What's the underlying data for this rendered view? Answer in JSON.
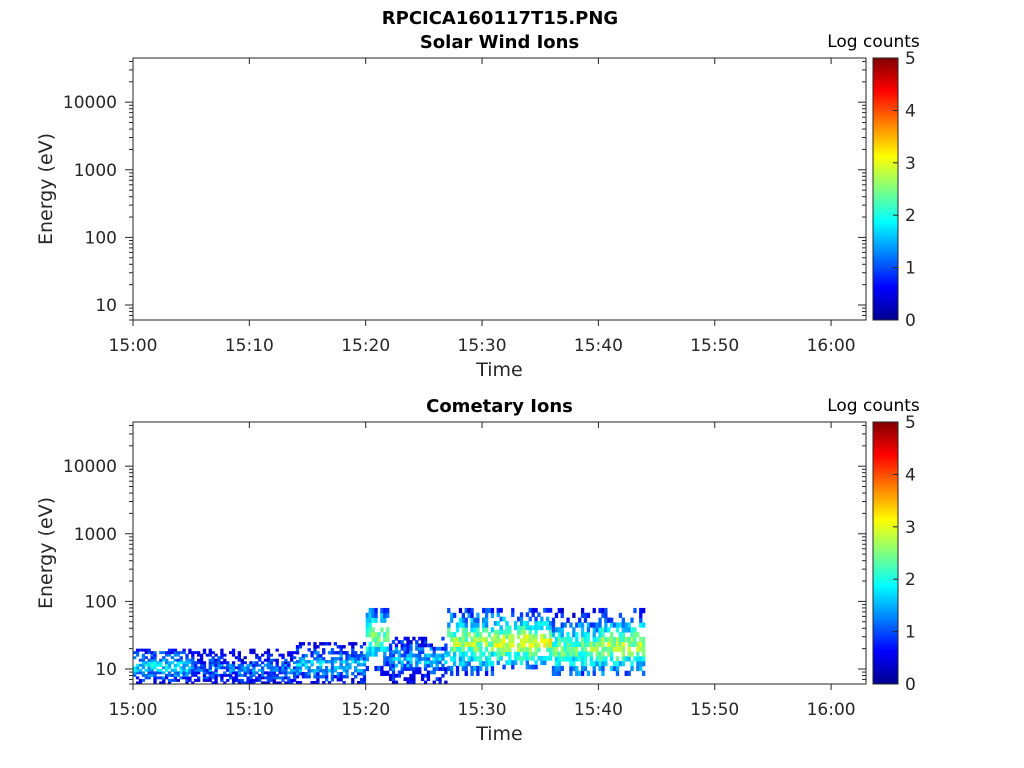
{
  "figure": {
    "title": "RPCICA160117T15.PNG"
  },
  "colormap": "jet",
  "chart_data": [
    {
      "type": "heatmap",
      "title": "Solar Wind Ions",
      "xlabel": "Time",
      "ylabel": "Energy (eV)",
      "x_ticks": [
        "15:00",
        "15:10",
        "15:20",
        "15:30",
        "15:40",
        "15:50",
        "16:00"
      ],
      "xlim": [
        "15:00",
        "16:03"
      ],
      "y_scale": "log",
      "y_ticks": [
        "10",
        "100",
        "1000",
        "10000"
      ],
      "ylim": [
        6,
        45000
      ],
      "colorbar": {
        "label": "Log counts",
        "range": [
          0,
          5
        ],
        "ticks": [
          "0",
          "1",
          "2",
          "3",
          "4",
          "5"
        ]
      },
      "data_segments": []
    },
    {
      "type": "heatmap",
      "title": "Cometary Ions",
      "xlabel": "Time",
      "ylabel": "Energy (eV)",
      "x_ticks": [
        "15:00",
        "15:10",
        "15:20",
        "15:30",
        "15:40",
        "15:50",
        "16:00"
      ],
      "xlim": [
        "15:00",
        "16:03"
      ],
      "y_scale": "log",
      "y_ticks": [
        "10",
        "100",
        "1000",
        "10000"
      ],
      "ylim": [
        6,
        45000
      ],
      "colorbar": {
        "label": "Log counts",
        "range": [
          0,
          5
        ],
        "ticks": [
          "0",
          "1",
          "2",
          "3",
          "4",
          "5"
        ]
      },
      "data_segments": [
        {
          "t_start": "15:00",
          "t_end": "15:05",
          "e_low": 6,
          "e_high": 20,
          "e_peak": 11,
          "peak_log_counts": 1.8
        },
        {
          "t_start": "15:05",
          "t_end": "15:14",
          "e_low": 6,
          "e_high": 20,
          "e_peak": 10,
          "peak_log_counts": 1.2
        },
        {
          "t_start": "15:14",
          "t_end": "15:20",
          "e_low": 6,
          "e_high": 25,
          "e_peak": 12,
          "peak_log_counts": 1.6
        },
        {
          "t_start": "15:20",
          "t_end": "15:22",
          "e_low": 8,
          "e_high": 80,
          "e_peak": 30,
          "peak_log_counts": 2.6
        },
        {
          "t_start": "15:22",
          "t_end": "15:27",
          "e_low": 6,
          "e_high": 30,
          "e_peak": 14,
          "peak_log_counts": 1.5
        },
        {
          "t_start": "15:27",
          "t_end": "15:31",
          "e_low": 8,
          "e_high": 80,
          "e_peak": 25,
          "peak_log_counts": 2.7
        },
        {
          "t_start": "15:31",
          "t_end": "15:36",
          "e_low": 10,
          "e_high": 80,
          "e_peak": 25,
          "peak_log_counts": 3.1
        },
        {
          "t_start": "15:36",
          "t_end": "15:40",
          "e_low": 8,
          "e_high": 80,
          "e_peak": 20,
          "peak_log_counts": 2.5
        },
        {
          "t_start": "15:40",
          "t_end": "15:44",
          "e_low": 8,
          "e_high": 80,
          "e_peak": 22,
          "peak_log_counts": 2.8
        }
      ]
    }
  ]
}
